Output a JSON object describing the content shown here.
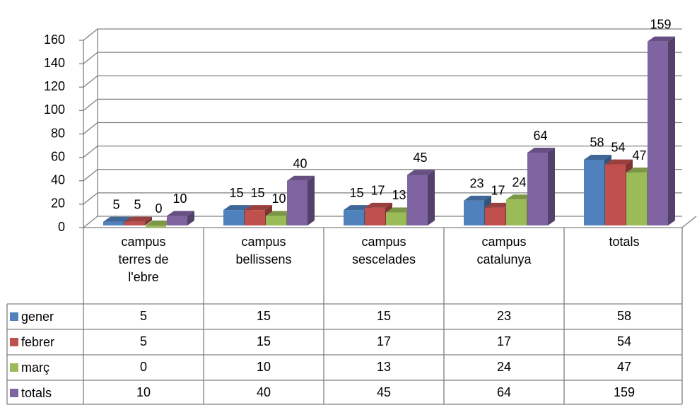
{
  "chart_data": {
    "type": "bar3d",
    "categories": [
      "campus terres de l'ebre",
      "campus bellissens",
      "campus sescelades",
      "campus catalunya",
      "totals"
    ],
    "series": [
      {
        "name": "gener",
        "color": "#4f81bd",
        "values": [
          5,
          15,
          15,
          23,
          58
        ]
      },
      {
        "name": "febrer",
        "color": "#c0504d",
        "values": [
          5,
          15,
          17,
          17,
          54
        ]
      },
      {
        "name": "març",
        "color": "#9bbb59",
        "values": [
          0,
          10,
          13,
          24,
          47
        ]
      },
      {
        "name": "totals",
        "color": "#8064a2",
        "values": [
          10,
          40,
          45,
          64,
          159
        ]
      }
    ],
    "ylim": [
      0,
      160
    ],
    "yticks": [
      0,
      20,
      40,
      60,
      80,
      100,
      120,
      140,
      160
    ],
    "grid": true,
    "data_table": true
  }
}
